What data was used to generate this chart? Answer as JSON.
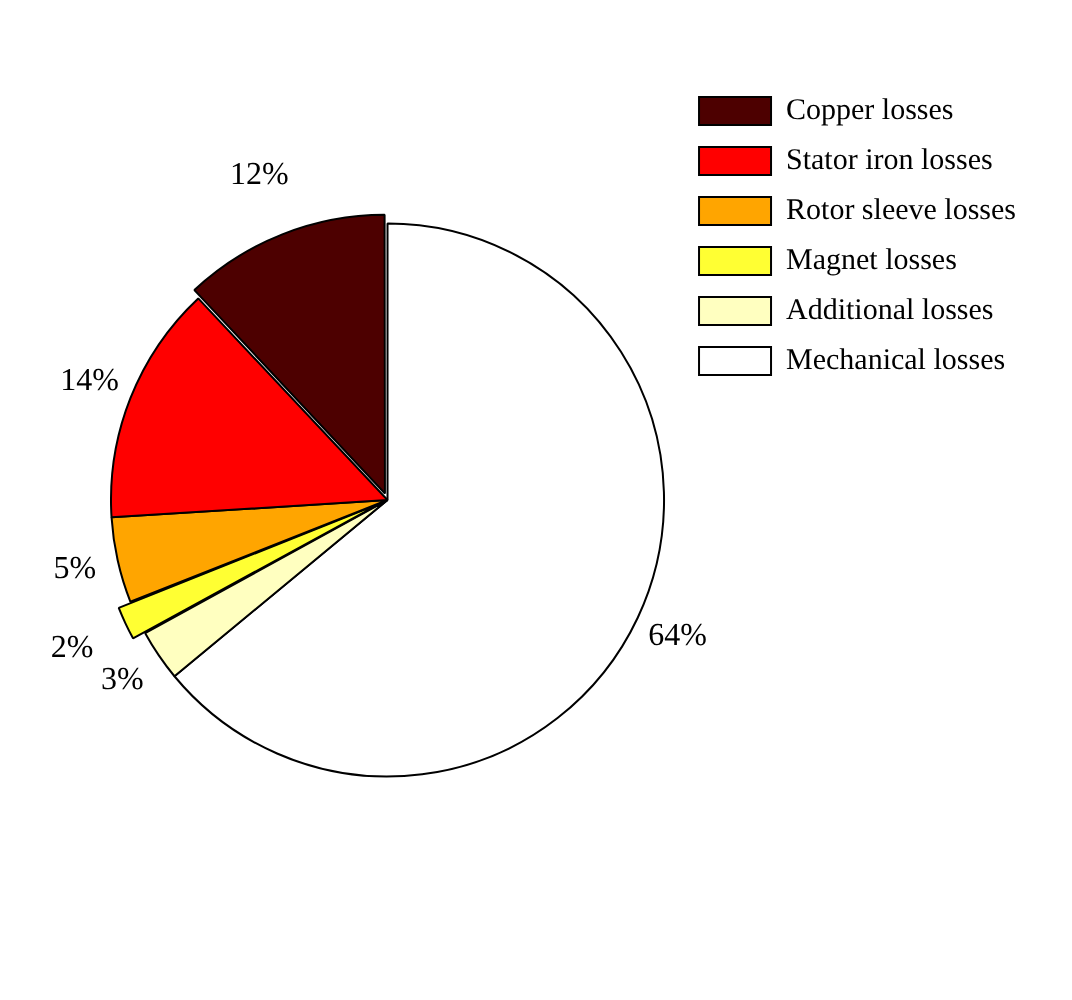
{
  "chart_data": {
    "type": "pie",
    "categories": [
      "Copper losses",
      "Stator iron losses",
      "Rotor sleeve losses",
      "Magnet losses",
      "Additional losses",
      "Mechanical losses"
    ],
    "values": [
      12,
      14,
      5,
      2,
      3,
      64
    ],
    "value_labels": [
      "12%",
      "14%",
      "5%",
      "2%",
      "3%",
      "64%"
    ],
    "colors": [
      "#4d0000",
      "#ff0000",
      "#ffa500",
      "#ffff33",
      "#ffffc0",
      "#ffffff"
    ],
    "legend": "top right"
  }
}
